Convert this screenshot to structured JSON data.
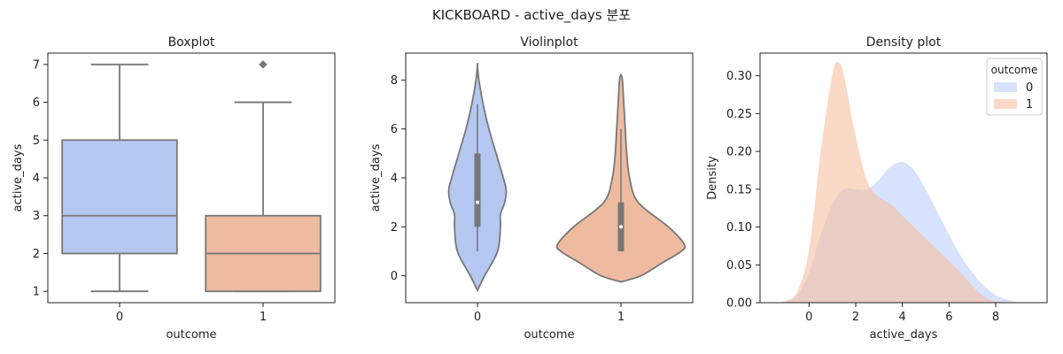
{
  "suptitle": "KICKBOARD - active_days 분포",
  "colors": {
    "blue": "#b4c8f2",
    "orange": "#eebba1",
    "stroke": "#777777",
    "kde_blue": "#bcd0fb",
    "kde_orange": "#f6bfa0"
  },
  "chart_data": [
    {
      "type": "boxplot",
      "title": "Boxplot",
      "xlabel": "outcome",
      "ylabel": "active_days",
      "categories": [
        "0",
        "1"
      ],
      "ylim": [
        0.7,
        7.3
      ],
      "yticks": [
        1,
        2,
        3,
        4,
        5,
        6,
        7
      ],
      "boxes": [
        {
          "category": "0",
          "min": 1,
          "q1": 2,
          "median": 3,
          "q3": 5,
          "max": 7,
          "outliers": []
        },
        {
          "category": "1",
          "min": 1,
          "q1": 1,
          "median": 2,
          "q3": 3,
          "max": 6,
          "outliers": [
            7
          ]
        }
      ]
    },
    {
      "type": "violin",
      "title": "Violinplot",
      "xlabel": "outcome",
      "ylabel": "active_days",
      "categories": [
        "0",
        "1"
      ],
      "ylim": [
        -1.1,
        9.1
      ],
      "yticks": [
        0,
        2,
        4,
        6,
        8
      ],
      "violins": [
        {
          "category": "0",
          "y": [
            -0.6,
            0,
            1,
            2,
            2.5,
            3,
            3.5,
            4,
            5,
            6,
            7,
            8,
            8.6
          ],
          "halfwidth": [
            0,
            0.05,
            0.14,
            0.16,
            0.16,
            0.19,
            0.2,
            0.18,
            0.13,
            0.08,
            0.04,
            0.01,
            0
          ],
          "box": {
            "q1": 2,
            "median": 3,
            "q3": 5,
            "whisker_low": 1,
            "whisker_high": 7
          }
        },
        {
          "category": "1",
          "y": [
            -0.25,
            0,
            0.5,
            1,
            1.3,
            2,
            3,
            4,
            5,
            6,
            7,
            8,
            8.2
          ],
          "halfwidth": [
            0,
            0.14,
            0.28,
            0.42,
            0.44,
            0.33,
            0.12,
            0.06,
            0.04,
            0.03,
            0.02,
            0.01,
            0
          ],
          "box": {
            "q1": 1,
            "median": 2,
            "q3": 3,
            "whisker_low": 1,
            "whisker_high": 6
          }
        }
      ]
    },
    {
      "type": "area",
      "title": "Density plot",
      "xlabel": "active_days",
      "ylabel": "Density",
      "xlim": [
        -2.1,
        10.2
      ],
      "ylim": [
        0,
        0.33
      ],
      "xticks": [
        0,
        2,
        4,
        6,
        8
      ],
      "yticks": [
        0.0,
        0.05,
        0.1,
        0.15,
        0.2,
        0.25,
        0.3
      ],
      "legend_title": "outcome",
      "legend_position": "top-right",
      "series": [
        {
          "name": "0",
          "x": [
            -1.5,
            -1,
            -0.5,
            0,
            0.5,
            1,
            1.5,
            2,
            2.5,
            3,
            3.5,
            4,
            4.5,
            5,
            5.5,
            6,
            6.5,
            7,
            7.5,
            8,
            8.5,
            9
          ],
          "values": [
            0,
            0.002,
            0.01,
            0.04,
            0.09,
            0.13,
            0.15,
            0.15,
            0.15,
            0.163,
            0.18,
            0.186,
            0.175,
            0.15,
            0.12,
            0.09,
            0.062,
            0.04,
            0.022,
            0.01,
            0.004,
            0
          ]
        },
        {
          "name": "1",
          "x": [
            -1.5,
            -1,
            -0.5,
            0,
            0.5,
            1,
            1.25,
            1.5,
            2,
            2.5,
            3,
            3.5,
            4,
            4.5,
            5,
            5.5,
            6,
            6.5,
            7,
            7.5,
            8,
            8.5
          ],
          "values": [
            0,
            0.002,
            0.015,
            0.07,
            0.2,
            0.302,
            0.318,
            0.3,
            0.22,
            0.16,
            0.14,
            0.13,
            0.115,
            0.1,
            0.085,
            0.07,
            0.055,
            0.04,
            0.022,
            0.008,
            0.002,
            0
          ]
        }
      ]
    }
  ]
}
